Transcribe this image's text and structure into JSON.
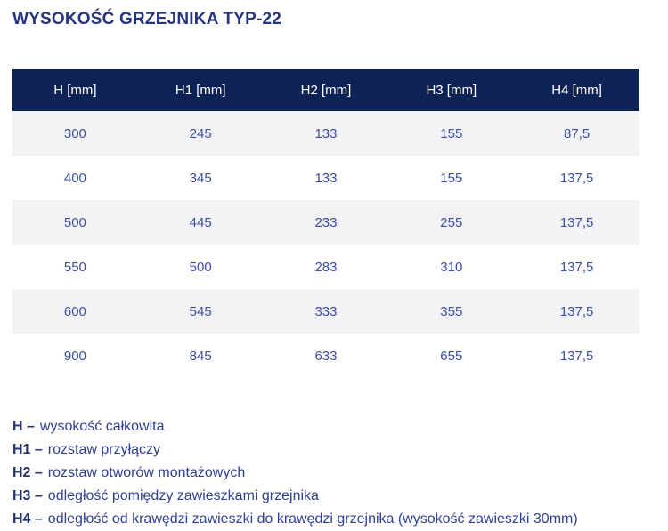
{
  "page": {
    "title": "WYSOKOŚĆ GRZEJNIKA TYP-22"
  },
  "colors": {
    "header_bg": "#0e2355",
    "header_text": "#ffffff",
    "cell_text": "#3c4ea3",
    "row_alt_bg": "#f3f3f5",
    "title_text": "#26357f",
    "legend_text": "#2e3f93"
  },
  "chart_data": {
    "type": "table",
    "title": "WYSOKOŚĆ GRZEJNIKA TYP-22",
    "columns": [
      "H [mm]",
      "H1 [mm]",
      "H2 [mm]",
      "H3 [mm]",
      "H4 [mm]"
    ],
    "rows": [
      [
        "300",
        "245",
        "133",
        "155",
        "87,5"
      ],
      [
        "400",
        "345",
        "133",
        "155",
        "137,5"
      ],
      [
        "500",
        "445",
        "233",
        "255",
        "137,5"
      ],
      [
        "550",
        "500",
        "283",
        "310",
        "137,5"
      ],
      [
        "600",
        "545",
        "333",
        "355",
        "137,5"
      ],
      [
        "900",
        "845",
        "633",
        "655",
        "137,5"
      ]
    ]
  },
  "table": {
    "headers": [
      "H [mm]",
      "H1 [mm]",
      "H2 [mm]",
      "H3 [mm]",
      "H4 [mm]"
    ],
    "rows": [
      [
        "300",
        "245",
        "133",
        "155",
        "87,5"
      ],
      [
        "400",
        "345",
        "133",
        "155",
        "137,5"
      ],
      [
        "500",
        "445",
        "233",
        "255",
        "137,5"
      ],
      [
        "550",
        "500",
        "283",
        "310",
        "137,5"
      ],
      [
        "600",
        "545",
        "333",
        "355",
        "137,5"
      ],
      [
        "900",
        "845",
        "633",
        "655",
        "137,5"
      ]
    ]
  },
  "legend": {
    "items": [
      {
        "term": "H –",
        "desc": "wysokość całkowita"
      },
      {
        "term": "H1 –",
        "desc": "rozstaw przyłączy"
      },
      {
        "term": "H2 –",
        "desc": "rozstaw otworów montażowych"
      },
      {
        "term": "H3 –",
        "desc": "odległość pomiędzy zawieszkami grzejnika"
      },
      {
        "term": "H4 –",
        "desc": "odległość od krawędzi zawieszki do krawędzi grzejnika (wysokość zawieszki 30mm)"
      }
    ]
  }
}
